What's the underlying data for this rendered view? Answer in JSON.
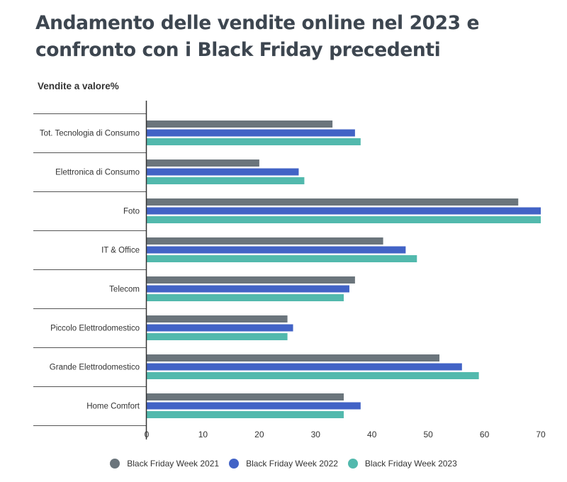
{
  "title": "Andamento delle vendite online nel 2023 e confronto con i Black Friday precedenti",
  "subtitle": "Vendite a valore%",
  "chart_data": {
    "type": "bar",
    "orientation": "horizontal",
    "categories": [
      "Tot. Tecnologia di Consumo",
      "Elettronica di Consumo",
      "Foto",
      "IT & Office",
      "Telecom",
      "Piccolo Elettrodomestico",
      "Grande Elettrodomestico",
      "Home Comfort"
    ],
    "series": [
      {
        "name": "Black Friday Week 2021",
        "color": "#6b757c",
        "values": [
          33,
          20,
          66,
          42,
          37,
          25,
          52,
          35
        ]
      },
      {
        "name": "Black Friday Week 2022",
        "color": "#4263c6",
        "values": [
          37,
          27,
          70,
          46,
          36,
          26,
          56,
          38
        ]
      },
      {
        "name": "Black Friday Week 2023",
        "color": "#52b9ad",
        "values": [
          38,
          28,
          70,
          48,
          35,
          25,
          59,
          35
        ]
      }
    ],
    "xlim": [
      0,
      70
    ],
    "xticks": [
      "0",
      "10",
      "20",
      "30",
      "40",
      "50",
      "60",
      "70"
    ],
    "legend_position": "bottom",
    "grid": false
  }
}
